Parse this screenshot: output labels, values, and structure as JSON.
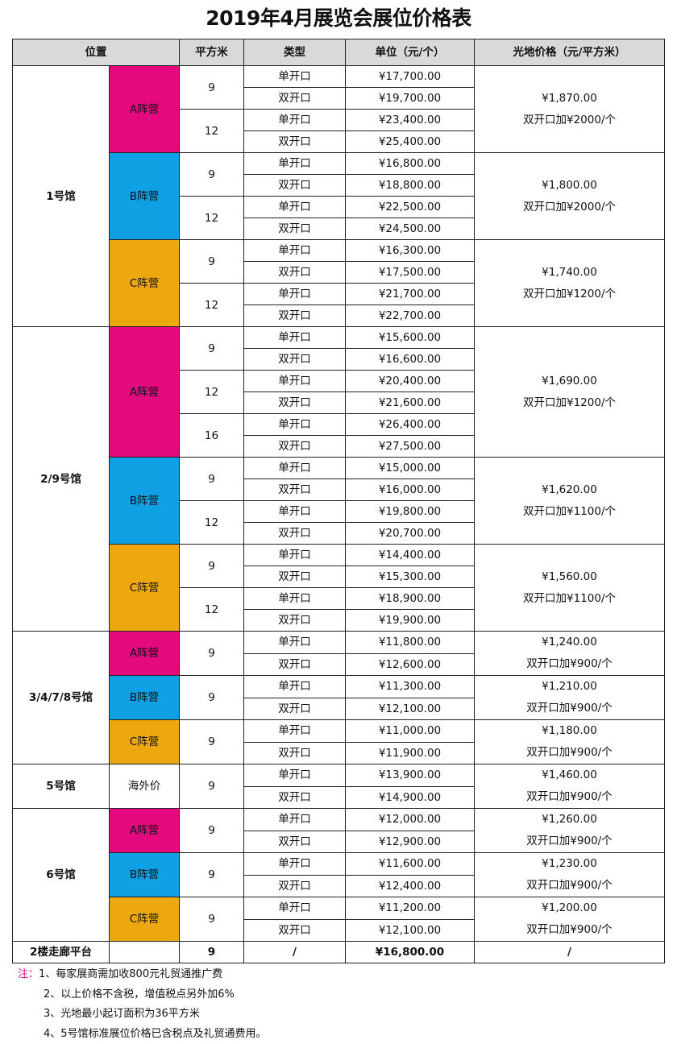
{
  "title": "2019年4月展览会展位价格表",
  "headers": {
    "position": "位置",
    "sqm": "平方米",
    "type": "类型",
    "unit": "单位（元/个）",
    "ground": "光地价格（元/平方米）"
  },
  "colors": {
    "A": "#e4097e",
    "B": "#0ea0e3",
    "C": "#eea80f",
    "none": "#ffffff",
    "header_bg": "#d9d9d9"
  },
  "halls": [
    {
      "name": "1号馆",
      "camps": [
        {
          "label": "A阵营",
          "color": "A",
          "ground_price": "¥1,870.00",
          "ground_extra": "双开口加¥2000/个",
          "sizes": [
            {
              "sqm": "9",
              "rows": [
                {
                  "type": "单开口",
                  "price": "¥17,700.00"
                },
                {
                  "type": "双开口",
                  "price": "¥19,700.00"
                }
              ]
            },
            {
              "sqm": "12",
              "rows": [
                {
                  "type": "单开口",
                  "price": "¥23,400.00"
                },
                {
                  "type": "双开口",
                  "price": "¥25,400.00"
                }
              ]
            }
          ]
        },
        {
          "label": "B阵营",
          "color": "B",
          "ground_price": "¥1,800.00",
          "ground_extra": "双开口加¥2000/个",
          "sizes": [
            {
              "sqm": "9",
              "rows": [
                {
                  "type": "单开口",
                  "price": "¥16,800.00"
                },
                {
                  "type": "双开口",
                  "price": "¥18,800.00"
                }
              ]
            },
            {
              "sqm": "12",
              "rows": [
                {
                  "type": "单开口",
                  "price": "¥22,500.00"
                },
                {
                  "type": "双开口",
                  "price": "¥24,500.00"
                }
              ]
            }
          ]
        },
        {
          "label": "C阵营",
          "color": "C",
          "ground_price": "¥1,740.00",
          "ground_extra": "双开口加¥1200/个",
          "sizes": [
            {
              "sqm": "9",
              "rows": [
                {
                  "type": "单开口",
                  "price": "¥16,300.00"
                },
                {
                  "type": "双开口",
                  "price": "¥17,500.00"
                }
              ]
            },
            {
              "sqm": "12",
              "rows": [
                {
                  "type": "单开口",
                  "price": "¥21,700.00"
                },
                {
                  "type": "双开口",
                  "price": "¥22,700.00"
                }
              ]
            }
          ]
        }
      ]
    },
    {
      "name": "2/9号馆",
      "camps": [
        {
          "label": "A阵营",
          "color": "A",
          "ground_price": "¥1,690.00",
          "ground_extra": "双开口加¥1200/个",
          "sizes": [
            {
              "sqm": "9",
              "rows": [
                {
                  "type": "单开口",
                  "price": "¥15,600.00"
                },
                {
                  "type": "双开口",
                  "price": "¥16,600.00"
                }
              ]
            },
            {
              "sqm": "12",
              "rows": [
                {
                  "type": "单开口",
                  "price": "¥20,400.00"
                },
                {
                  "type": "双开口",
                  "price": "¥21,600.00"
                }
              ]
            },
            {
              "sqm": "16",
              "rows": [
                {
                  "type": "单开口",
                  "price": "¥26,400.00"
                },
                {
                  "type": "双开口",
                  "price": "¥27,500.00"
                }
              ]
            }
          ]
        },
        {
          "label": "B阵营",
          "color": "B",
          "ground_price": "¥1,620.00",
          "ground_extra": "双开口加¥1100/个",
          "sizes": [
            {
              "sqm": "9",
              "rows": [
                {
                  "type": "单开口",
                  "price": "¥15,000.00"
                },
                {
                  "type": "双开口",
                  "price": "¥16,000.00"
                }
              ]
            },
            {
              "sqm": "12",
              "rows": [
                {
                  "type": "单开口",
                  "price": "¥19,800.00"
                },
                {
                  "type": "双开口",
                  "price": "¥20,700.00"
                }
              ]
            }
          ]
        },
        {
          "label": "C阵营",
          "color": "C",
          "ground_price": "¥1,560.00",
          "ground_extra": "双开口加¥1100/个",
          "sizes": [
            {
              "sqm": "9",
              "rows": [
                {
                  "type": "单开口",
                  "price": "¥14,400.00"
                },
                {
                  "type": "双开口",
                  "price": "¥15,300.00"
                }
              ]
            },
            {
              "sqm": "12",
              "rows": [
                {
                  "type": "单开口",
                  "price": "¥18,900.00"
                },
                {
                  "type": "双开口",
                  "price": "¥19,900.00"
                }
              ]
            }
          ]
        }
      ]
    },
    {
      "name": "3/4/7/8号馆",
      "camps": [
        {
          "label": "A阵营",
          "color": "A",
          "ground_price": "¥1,240.00",
          "ground_extra": "双开口加¥900/个",
          "sizes": [
            {
              "sqm": "9",
              "rows": [
                {
                  "type": "单开口",
                  "price": "¥11,800.00"
                },
                {
                  "type": "双开口",
                  "price": "¥12,600.00"
                }
              ]
            }
          ]
        },
        {
          "label": "B阵营",
          "color": "B",
          "ground_price": "¥1,210.00",
          "ground_extra": "双开口加¥900/个",
          "sizes": [
            {
              "sqm": "9",
              "rows": [
                {
                  "type": "单开口",
                  "price": "¥11,300.00"
                },
                {
                  "type": "双开口",
                  "price": "¥12,100.00"
                }
              ]
            }
          ]
        },
        {
          "label": "C阵营",
          "color": "C",
          "ground_price": "¥1,180.00",
          "ground_extra": "双开口加¥900/个",
          "sizes": [
            {
              "sqm": "9",
              "rows": [
                {
                  "type": "单开口",
                  "price": "¥11,000.00"
                },
                {
                  "type": "双开口",
                  "price": "¥11,900.00"
                }
              ]
            }
          ]
        }
      ]
    },
    {
      "name": "5号馆",
      "camps": [
        {
          "label": "海外价",
          "color": "none",
          "ground_price": "¥1,460.00",
          "ground_extra": "双开口加¥900/个",
          "sizes": [
            {
              "sqm": "9",
              "rows": [
                {
                  "type": "单开口",
                  "price": "¥13,900.00"
                },
                {
                  "type": "双开口",
                  "price": "¥14,900.00"
                }
              ]
            }
          ]
        }
      ]
    },
    {
      "name": "6号馆",
      "camps": [
        {
          "label": "A阵营",
          "color": "A",
          "ground_price": "¥1,260.00",
          "ground_extra": "双开口加¥900/个",
          "sizes": [
            {
              "sqm": "9",
              "rows": [
                {
                  "type": "单开口",
                  "price": "¥12,000.00"
                },
                {
                  "type": "双开口",
                  "price": "¥12,900.00"
                }
              ]
            }
          ]
        },
        {
          "label": "B阵营",
          "color": "B",
          "ground_price": "¥1,230.00",
          "ground_extra": "双开口加¥900/个",
          "sizes": [
            {
              "sqm": "9",
              "rows": [
                {
                  "type": "单开口",
                  "price": "¥11,600.00"
                },
                {
                  "type": "双开口",
                  "price": "¥12,400.00"
                }
              ]
            }
          ]
        },
        {
          "label": "C阵营",
          "color": "C",
          "ground_price": "¥1,200.00",
          "ground_extra": "双开口加¥900/个",
          "sizes": [
            {
              "sqm": "9",
              "rows": [
                {
                  "type": "单开口",
                  "price": "¥11,200.00"
                },
                {
                  "type": "双开口",
                  "price": "¥12,100.00"
                }
              ]
            }
          ]
        }
      ]
    }
  ],
  "last_row": {
    "name": "2楼走廊平台",
    "camp": "",
    "sqm": "9",
    "type": "/",
    "price": "¥16,800.00",
    "ground": "/"
  },
  "notes": {
    "label": "注：",
    "items": [
      "1、每家展商需加收800元礼贸通推广费",
      "2、以上价格不含税，增值税点另外加6%",
      "3、光地最小起订面积为36平方米",
      "4、5号馆标准展位价格已含税点及礼贸通费用。"
    ]
  }
}
